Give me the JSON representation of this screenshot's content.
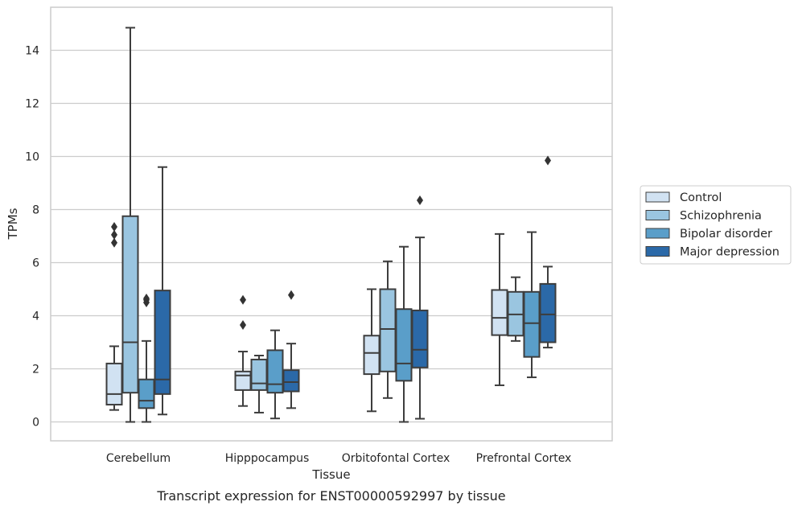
{
  "chart_data": {
    "type": "box",
    "xlabel": "Tissue",
    "ylabel": "TPMs",
    "caption": "Transcript expression for ENST00000592997 by tissue",
    "ylim": [
      -0.7,
      15.9
    ],
    "yticks": [
      0,
      2,
      4,
      6,
      8,
      10,
      12,
      14
    ],
    "grid": "horizontal",
    "legend_position": "right",
    "categories": [
      "Cerebellum",
      "Hipppocampus",
      "Orbitofontal Cortex",
      "Prefrontal Cortex"
    ],
    "series": [
      {
        "name": "Control",
        "color": "#d1e2f2",
        "boxes": [
          {
            "whislo": 0.45,
            "q1": 0.65,
            "med": 1.05,
            "q3": 2.2,
            "whishi": 2.85,
            "fliers": [
              6.75,
              7.05,
              7.35
            ]
          },
          {
            "whislo": 0.6,
            "q1": 1.2,
            "med": 1.75,
            "q3": 1.9,
            "whishi": 2.65,
            "fliers": [
              3.65,
              4.6
            ]
          },
          {
            "whislo": 0.4,
            "q1": 1.8,
            "med": 2.6,
            "q3": 3.25,
            "whishi": 5.0,
            "fliers": []
          },
          {
            "whislo": 1.38,
            "q1": 3.27,
            "med": 3.92,
            "q3": 4.97,
            "whishi": 7.08,
            "fliers": []
          }
        ]
      },
      {
        "name": "Schizophrenia",
        "color": "#9ac5e0",
        "boxes": [
          {
            "whislo": 0.0,
            "q1": 1.1,
            "med": 3.0,
            "q3": 7.75,
            "whishi": 14.85,
            "fliers": []
          },
          {
            "whislo": 0.35,
            "q1": 1.2,
            "med": 1.45,
            "q3": 2.35,
            "whishi": 2.5,
            "fliers": []
          },
          {
            "whislo": 0.9,
            "q1": 1.9,
            "med": 3.5,
            "q3": 5.0,
            "whishi": 6.05,
            "fliers": []
          },
          {
            "whislo": 3.05,
            "q1": 3.25,
            "med": 4.05,
            "q3": 4.9,
            "whishi": 5.45,
            "fliers": []
          }
        ]
      },
      {
        "name": "Bipolar disorder",
        "color": "#5a9ec9",
        "boxes": [
          {
            "whislo": 0.0,
            "q1": 0.52,
            "med": 0.8,
            "q3": 1.6,
            "whishi": 3.05,
            "fliers": [
              4.5,
              4.6,
              4.65
            ]
          },
          {
            "whislo": 0.13,
            "q1": 1.1,
            "med": 1.42,
            "q3": 2.7,
            "whishi": 3.45,
            "fliers": []
          },
          {
            "whislo": 0.0,
            "q1": 1.55,
            "med": 2.2,
            "q3": 4.25,
            "whishi": 6.6,
            "fliers": []
          },
          {
            "whislo": 1.68,
            "q1": 2.45,
            "med": 3.72,
            "q3": 4.9,
            "whishi": 7.15,
            "fliers": []
          }
        ]
      },
      {
        "name": "Major depression",
        "color": "#2b69a8",
        "boxes": [
          {
            "whislo": 0.28,
            "q1": 1.05,
            "med": 1.6,
            "q3": 4.95,
            "whishi": 9.6,
            "fliers": []
          },
          {
            "whislo": 0.52,
            "q1": 1.15,
            "med": 1.5,
            "q3": 1.95,
            "whishi": 2.95,
            "fliers": [
              4.78
            ]
          },
          {
            "whislo": 0.12,
            "q1": 2.05,
            "med": 2.72,
            "q3": 4.2,
            "whishi": 6.95,
            "fliers": [
              8.35
            ]
          },
          {
            "whislo": 2.8,
            "q1": 3.0,
            "med": 4.05,
            "q3": 5.2,
            "whishi": 5.85,
            "fliers": [
              9.85
            ]
          }
        ]
      }
    ]
  }
}
